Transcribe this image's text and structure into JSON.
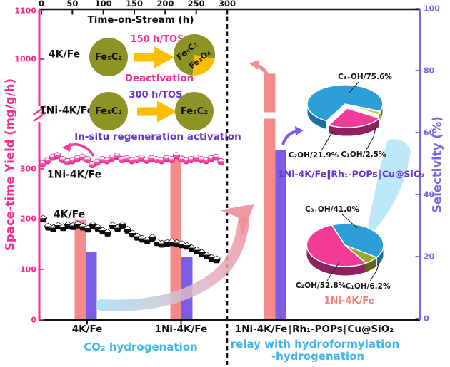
{
  "axes": {
    "top": {
      "label": "Time-on-Stream (h)",
      "ticks": [
        0,
        50,
        100,
        150,
        200,
        250,
        300
      ]
    },
    "left": {
      "label": "Space-time Yield (mg/g/h)",
      "color": "#ff2a90",
      "lower_ticks": [
        0,
        100,
        200,
        300
      ],
      "upper_ticks": [
        1000,
        1100
      ],
      "has_break": true
    },
    "right": {
      "label": "Selectivity (%)",
      "color": "#7d64e8",
      "ticks": [
        0,
        20,
        40,
        60,
        80,
        100
      ]
    }
  },
  "inset": {
    "row1": {
      "catalyst": "4K/Fe",
      "phase_start": "Fe₅C₂",
      "tos": "150 h/TOS",
      "result_main": "Fe₅C₂",
      "result_minor": "Fe₃O₄",
      "caption": "Deactivation",
      "caption_color": "#ee2f95"
    },
    "row2": {
      "catalyst": "1Ni-4K/Fe",
      "phase_start": "Fe₅C₂",
      "tos": "300 h/TOS",
      "result": "Fe₅C₂",
      "caption": "In-situ regeneration activation",
      "caption_color": "#6633cc"
    }
  },
  "chart_data": {
    "type": "combo",
    "x_axis": {
      "label": "Time-on-Stream (h)",
      "range": [
        0,
        300
      ]
    },
    "scatter": [
      {
        "name": "1Ni-4K/Fe space-time yield",
        "label": "1Ni-4K/Fe",
        "marker": "pink-sphere",
        "color": "#ee2f95",
        "x_tos": [
          2,
          10,
          18,
          26,
          34,
          42,
          50,
          58,
          66,
          74,
          82,
          90,
          98,
          106,
          114,
          122,
          130,
          138,
          146,
          154,
          162,
          170,
          178,
          186,
          194,
          202,
          210,
          218,
          226,
          234,
          242,
          250,
          258,
          266,
          274,
          282,
          290
        ],
        "yield": [
          310,
          316,
          323,
          326,
          318,
          314,
          316,
          320,
          323,
          318,
          308,
          313,
          318,
          316,
          321,
          325,
          318,
          320,
          316,
          318,
          321,
          317,
          320,
          318,
          316,
          320,
          318,
          326,
          319,
          316,
          318,
          321,
          318,
          316,
          320,
          323,
          314
        ]
      },
      {
        "name": "4K/Fe space-time yield",
        "label": "4K/Fe",
        "marker": "black-pentagon",
        "color": "#111111",
        "x_tos": [
          3,
          11,
          19,
          27,
          35,
          43,
          51,
          59,
          67,
          75,
          83,
          91,
          99,
          107,
          115,
          123,
          131,
          139,
          147,
          155,
          163,
          171,
          179,
          187,
          195,
          203,
          211,
          219,
          227,
          235,
          243,
          251,
          259,
          267,
          275,
          283
        ],
        "yield": [
          200,
          184,
          181,
          186,
          183,
          187,
          185,
          188,
          184,
          180,
          187,
          182,
          176,
          172,
          186,
          181,
          187,
          178,
          170,
          164,
          160,
          157,
          162,
          153,
          150,
          152,
          153,
          151,
          149,
          146,
          141,
          137,
          132,
          127,
          122,
          119
        ]
      }
    ],
    "bars": {
      "groups": [
        "4K/Fe",
        "1Ni-4K/Fe",
        "1Ni-4K/Fe‖Rh₁-POPs‖Cu@SiO₂"
      ],
      "sty": {
        "axis": "left",
        "color": "#f58a8a",
        "values": [
          198,
          320,
          970
        ],
        "broken": [
          false,
          false,
          true
        ]
      },
      "selectivity": {
        "axis": "right",
        "color": "#7d5ce6",
        "values": [
          21.5,
          20,
          54.5
        ]
      }
    },
    "pies": [
      {
        "title": "1Ni-4K/Fe‖Rh₁-POPs‖Cu@SiO₂",
        "title_color": "#6633cc",
        "slices": [
          {
            "label": "C₃₊OH/75.6%",
            "pct": 75.6,
            "color": "#2e9fd6"
          },
          {
            "label": "C₂OH/21.9%",
            "pct": 21.9,
            "color": "#f23b97"
          },
          {
            "label": "C₁OH/2.5%",
            "pct": 2.5,
            "color": "#cfc82a"
          }
        ]
      },
      {
        "title": "1Ni-4K/Fe",
        "title_color": "#f0827f",
        "slices": [
          {
            "label": "C₃₊OH/41.0%",
            "pct": 41.0,
            "color": "#2e9fd6"
          },
          {
            "label": "C₂OH/52.8%",
            "pct": 52.8,
            "color": "#f23b97"
          },
          {
            "label": "C₁OH/6.2%",
            "pct": 6.2,
            "color": "#9aa62e"
          }
        ]
      }
    ]
  },
  "captions": {
    "left_panel": "CO₂ hydrogenation",
    "right_panel_line1": "relay with hydroformylation",
    "right_panel_line2": "-hydrogenation",
    "color": "#3db7ea"
  }
}
